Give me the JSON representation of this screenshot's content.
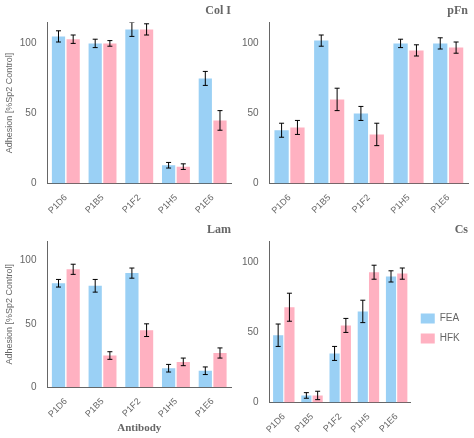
{
  "chart_data": [
    {
      "type": "bar",
      "title": "Col I",
      "categories": [
        "P1D6",
        "P1B5",
        "P1F2",
        "P1H5",
        "P1E6"
      ],
      "series": [
        {
          "name": "FEA",
          "values": [
            105,
            100,
            110,
            13,
            75
          ],
          "errors": [
            4,
            3,
            5,
            2,
            5
          ]
        },
        {
          "name": "HFK",
          "values": [
            103,
            100,
            110,
            12,
            45
          ],
          "errors": [
            3,
            2,
            4,
            2,
            7
          ]
        }
      ],
      "ylabel": "Adhesion [%Sp2 Control]",
      "ylim": [
        0,
        115
      ],
      "yticks": [
        0,
        50,
        100
      ],
      "grid": false
    },
    {
      "type": "bar",
      "title": "pFn",
      "categories": [
        "P1D6",
        "P1B5",
        "P1F2",
        "P1H5",
        "P1E6"
      ],
      "series": [
        {
          "name": "FEA",
          "values": [
            38,
            102,
            50,
            100,
            100
          ],
          "errors": [
            5,
            4,
            5,
            3,
            4
          ]
        },
        {
          "name": "HFK",
          "values": [
            40,
            60,
            35,
            95,
            97
          ],
          "errors": [
            5,
            8,
            8,
            4,
            4
          ]
        }
      ],
      "ylim": [
        0,
        115
      ],
      "yticks": [
        0,
        50,
        100
      ],
      "grid": false
    },
    {
      "type": "bar",
      "title": "Lam",
      "categories": [
        "P1D6",
        "P1B5",
        "P1F2",
        "P1H5",
        "P1E6"
      ],
      "series": [
        {
          "name": "FEA",
          "values": [
            82,
            80,
            90,
            15,
            13
          ],
          "errors": [
            3,
            5,
            4,
            3,
            3
          ]
        },
        {
          "name": "HFK",
          "values": [
            93,
            25,
            45,
            20,
            27
          ],
          "errors": [
            4,
            3,
            5,
            3,
            4
          ]
        }
      ],
      "ylabel": "Adhesion [%Sp2 Control]",
      "xlabel": "Antibody",
      "ylim": [
        0,
        115
      ],
      "yticks": [
        0,
        50,
        100
      ],
      "grid": false
    },
    {
      "type": "bar",
      "title": "Cs",
      "categories": [
        "P1D6",
        "P1B5",
        "P1F2",
        "P1H5",
        "P1E6"
      ],
      "series": [
        {
          "name": "FEA",
          "values": [
            48,
            5,
            35,
            65,
            90
          ],
          "errors": [
            8,
            2,
            5,
            8,
            4
          ]
        },
        {
          "name": "HFK",
          "values": [
            68,
            5,
            55,
            93,
            92
          ],
          "errors": [
            10,
            3,
            5,
            5,
            4
          ]
        }
      ],
      "ylim": [
        0,
        115
      ],
      "yticks": [
        0,
        50,
        100
      ],
      "grid": false,
      "legend": "right"
    }
  ]
}
